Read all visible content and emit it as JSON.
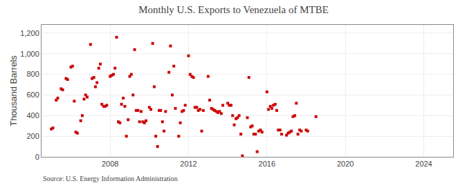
{
  "chart_data": {
    "type": "scatter",
    "title": "Monthly U.S. Exports to Venezuela of MTBE",
    "ylabel": "Thousand Barrels",
    "annotations": [
      "Source: U.S. Energy Information Administration"
    ],
    "color": "#cc0000",
    "marker": "square",
    "grid": true,
    "xlim": [
      2004.5,
      2025.5
    ],
    "xticks": [
      2008,
      2012,
      2016,
      2020,
      2024
    ],
    "ylim": [
      0,
      1280
    ],
    "yticks": [
      0,
      200,
      400,
      600,
      800,
      {
        "value": 1000,
        "label": "1,000"
      },
      {
        "value": 1200,
        "label": "1,200"
      }
    ],
    "x": [
      2005.0,
      2005.08,
      2005.25,
      2005.33,
      2005.5,
      2005.58,
      2005.75,
      2005.83,
      2006.0,
      2006.08,
      2006.17,
      2006.25,
      2006.33,
      2006.5,
      2006.58,
      2006.67,
      2006.75,
      2006.83,
      2007.0,
      2007.08,
      2007.17,
      2007.25,
      2007.33,
      2007.42,
      2007.5,
      2007.58,
      2007.67,
      2007.75,
      2007.83,
      2008.0,
      2008.08,
      2008.17,
      2008.25,
      2008.33,
      2008.42,
      2008.5,
      2008.58,
      2008.67,
      2008.75,
      2008.83,
      2008.92,
      2009.0,
      2009.08,
      2009.17,
      2009.25,
      2009.33,
      2009.42,
      2009.5,
      2009.58,
      2009.67,
      2009.75,
      2009.83,
      2010.0,
      2010.08,
      2010.17,
      2010.25,
      2010.33,
      2010.42,
      2010.5,
      2010.58,
      2010.67,
      2010.75,
      2010.83,
      2011.0,
      2011.08,
      2011.17,
      2011.25,
      2011.33,
      2011.5,
      2011.58,
      2011.67,
      2011.75,
      2011.83,
      2012.0,
      2012.08,
      2012.17,
      2012.25,
      2012.33,
      2012.42,
      2012.5,
      2012.58,
      2012.67,
      2012.75,
      2013.0,
      2013.08,
      2013.17,
      2013.25,
      2013.33,
      2013.42,
      2013.5,
      2013.58,
      2013.67,
      2013.75,
      2014.0,
      2014.08,
      2014.17,
      2014.25,
      2014.33,
      2014.42,
      2014.5,
      2014.58,
      2014.67,
      2014.75,
      2015.0,
      2015.08,
      2015.17,
      2015.25,
      2015.33,
      2015.42,
      2015.5,
      2015.58,
      2015.67,
      2015.75,
      2016.0,
      2016.08,
      2016.17,
      2016.25,
      2016.33,
      2016.42,
      2016.5,
      2016.58,
      2016.67,
      2016.75,
      2017.0,
      2017.08,
      2017.17,
      2017.25,
      2017.33,
      2017.42,
      2017.5,
      2017.58,
      2017.67,
      2017.75,
      2018.0,
      2018.08,
      2018.5
    ],
    "values": [
      270,
      280,
      550,
      570,
      660,
      650,
      760,
      750,
      870,
      880,
      540,
      240,
      230,
      350,
      400,
      560,
      600,
      580,
      1090,
      760,
      770,
      680,
      720,
      860,
      900,
      510,
      490,
      490,
      500,
      780,
      790,
      800,
      860,
      1160,
      340,
      330,
      510,
      570,
      490,
      200,
      360,
      780,
      800,
      600,
      1040,
      450,
      450,
      340,
      440,
      340,
      330,
      350,
      480,
      460,
      1100,
      680,
      200,
      100,
      450,
      450,
      340,
      250,
      440,
      820,
      1075,
      600,
      880,
      470,
      200,
      330,
      440,
      450,
      500,
      980,
      800,
      780,
      770,
      480,
      480,
      450,
      460,
      250,
      450,
      780,
      550,
      470,
      460,
      450,
      440,
      430,
      440,
      420,
      500,
      520,
      500,
      500,
      400,
      310,
      370,
      380,
      400,
      220,
      10,
      380,
      770,
      290,
      300,
      220,
      220,
      50,
      250,
      260,
      240,
      630,
      460,
      490,
      470,
      500,
      510,
      450,
      260,
      260,
      220,
      210,
      230,
      240,
      250,
      390,
      400,
      520,
      220,
      260,
      250,
      260,
      250,
      390
    ]
  }
}
